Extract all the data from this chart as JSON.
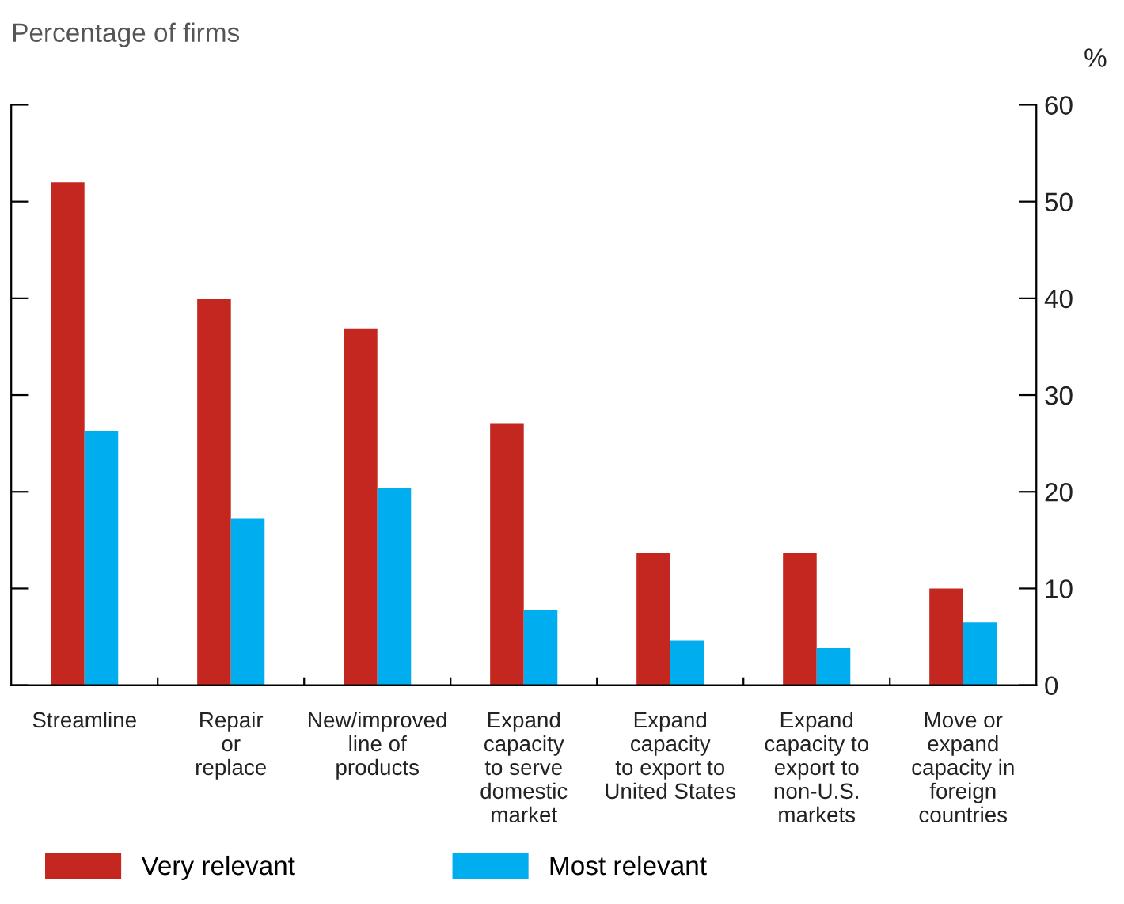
{
  "chart_data": {
    "type": "bar",
    "ylabel": "Percentage of firms",
    "y2label": "%",
    "categories": [
      "Streamline",
      "Repair\nor\nreplace",
      "New/improved\nline of\nproducts",
      "Expand\ncapacity\nto serve\ndomestic\nmarket",
      "Expand\ncapacity\nto export to\nUnited States",
      "Expand\ncapacity to\nexport to\nnon-U.S.\nmarkets",
      "Move or\nexpand\ncapacity in\nforeign\ncountries"
    ],
    "series": [
      {
        "name": "Very relevant",
        "color": "#c4271f",
        "values": [
          52.0,
          39.9,
          36.9,
          27.1,
          13.7,
          13.7,
          10.0
        ]
      },
      {
        "name": "Most relevant",
        "color": "#00aeef",
        "values": [
          26.3,
          17.2,
          20.4,
          7.8,
          4.6,
          3.9,
          6.5
        ]
      }
    ],
    "ylim": [
      0,
      60
    ],
    "yticks": [
      0,
      10,
      20,
      30,
      40,
      50,
      60
    ],
    "grid": false,
    "legend": "bottom left"
  }
}
